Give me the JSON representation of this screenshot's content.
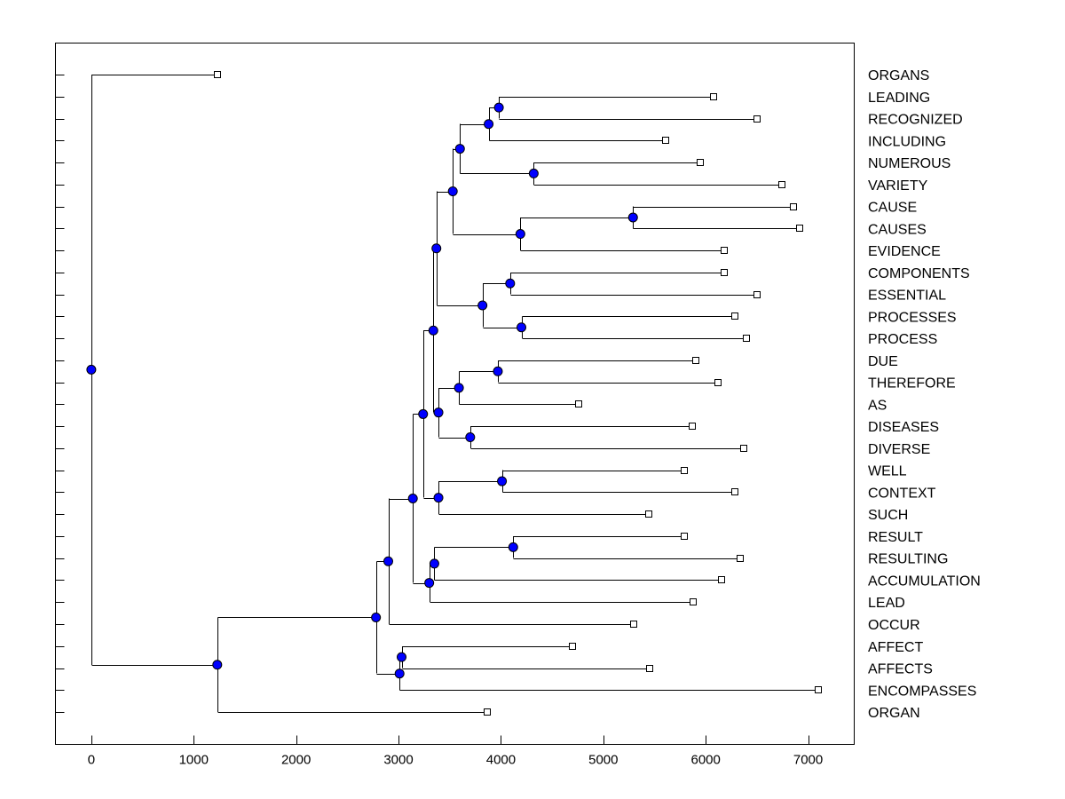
{
  "chart_data": {
    "type": "dendrogram",
    "title": "",
    "xlabel": "",
    "ylabel": "",
    "xlim": [
      -350,
      7450
    ],
    "xticks": [
      0,
      1000,
      2000,
      3000,
      4000,
      5000,
      6000,
      7000
    ],
    "leaves": [
      {
        "label": "ORGANS",
        "x": 1230
      },
      {
        "label": "LEADING",
        "x": 6080
      },
      {
        "label": "RECOGNIZED",
        "x": 6500
      },
      {
        "label": "INCLUDING",
        "x": 5610
      },
      {
        "label": "NUMEROUS",
        "x": 5950
      },
      {
        "label": "VARIETY",
        "x": 6740
      },
      {
        "label": "CAUSE",
        "x": 6860
      },
      {
        "label": "CAUSES",
        "x": 6920
      },
      {
        "label": "EVIDENCE",
        "x": 6180
      },
      {
        "label": "COMPONENTS",
        "x": 6180
      },
      {
        "label": "ESSENTIAL",
        "x": 6500
      },
      {
        "label": "PROCESSES",
        "x": 6280
      },
      {
        "label": "PROCESS",
        "x": 6400
      },
      {
        "label": "DUE",
        "x": 5900
      },
      {
        "label": "THEREFORE",
        "x": 6120
      },
      {
        "label": "AS",
        "x": 4760
      },
      {
        "label": "DISEASES",
        "x": 5870
      },
      {
        "label": "DIVERSE",
        "x": 6370
      },
      {
        "label": "WELL",
        "x": 5790
      },
      {
        "label": "CONTEXT",
        "x": 6280
      },
      {
        "label": "SUCH",
        "x": 5440
      },
      {
        "label": "RESULT",
        "x": 5790
      },
      {
        "label": "RESULTING",
        "x": 6340
      },
      {
        "label": "ACCUMULATION",
        "x": 6150
      },
      {
        "label": "LEAD",
        "x": 5880
      },
      {
        "label": "OCCUR",
        "x": 5300
      },
      {
        "label": "AFFECT",
        "x": 4700
      },
      {
        "label": "AFFECTS",
        "x": 5450
      },
      {
        "label": "ENCOMPASSES",
        "x": 7100
      },
      {
        "label": "ORGAN",
        "x": 3870
      }
    ],
    "merges": [
      {
        "id": "n1",
        "x": 3980,
        "children": [
          "L1",
          "L2"
        ]
      },
      {
        "id": "n2",
        "x": 3880,
        "children": [
          "n1",
          "L3"
        ]
      },
      {
        "id": "n3",
        "x": 4320,
        "children": [
          "L4",
          "L5"
        ]
      },
      {
        "id": "n4",
        "x": 3600,
        "children": [
          "n2",
          "n3"
        ]
      },
      {
        "id": "n5",
        "x": 5290,
        "children": [
          "L6",
          "L7"
        ]
      },
      {
        "id": "n6",
        "x": 4190,
        "children": [
          "n5",
          "L8"
        ]
      },
      {
        "id": "n7",
        "x": 3530,
        "children": [
          "n4",
          "n6"
        ]
      },
      {
        "id": "n8",
        "x": 4090,
        "children": [
          "L9",
          "L10"
        ]
      },
      {
        "id": "n9",
        "x": 4200,
        "children": [
          "L11",
          "L12"
        ]
      },
      {
        "id": "n10",
        "x": 3820,
        "children": [
          "n8",
          "n9"
        ]
      },
      {
        "id": "n11",
        "x": 3370,
        "children": [
          "n7",
          "n10"
        ]
      },
      {
        "id": "n12",
        "x": 3970,
        "children": [
          "L13",
          "L14"
        ]
      },
      {
        "id": "n13",
        "x": 3590,
        "children": [
          "n12",
          "L15"
        ]
      },
      {
        "id": "n14",
        "x": 3700,
        "children": [
          "L16",
          "L17"
        ]
      },
      {
        "id": "n15",
        "x": 3390,
        "children": [
          "n13",
          "n14"
        ]
      },
      {
        "id": "n16",
        "x": 3340,
        "children": [
          "n11",
          "n15"
        ]
      },
      {
        "id": "n17",
        "x": 4010,
        "children": [
          "L18",
          "L19"
        ]
      },
      {
        "id": "n18",
        "x": 3390,
        "children": [
          "n17",
          "L20"
        ]
      },
      {
        "id": "n19",
        "x": 3240,
        "children": [
          "n16",
          "n18"
        ]
      },
      {
        "id": "n20",
        "x": 4120,
        "children": [
          "L21",
          "L22"
        ]
      },
      {
        "id": "n21",
        "x": 3350,
        "children": [
          "n20",
          "L23"
        ]
      },
      {
        "id": "n22",
        "x": 3300,
        "children": [
          "n21",
          "L24"
        ]
      },
      {
        "id": "n23",
        "x": 3140,
        "children": [
          "n19",
          "n22"
        ]
      },
      {
        "id": "n24",
        "x": 2900,
        "children": [
          "n23",
          "L25"
        ]
      },
      {
        "id": "n25",
        "x": 3030,
        "children": [
          "L26",
          "L27"
        ]
      },
      {
        "id": "n26",
        "x": 3010,
        "children": [
          "n25",
          "L28"
        ]
      },
      {
        "id": "n27",
        "x": 2780,
        "children": [
          "n24",
          "n26"
        ]
      },
      {
        "id": "n28",
        "x": 1230,
        "children": [
          "n27",
          "L29"
        ]
      },
      {
        "id": "n29",
        "x": 0,
        "children": [
          "L0",
          "n28"
        ]
      }
    ]
  }
}
